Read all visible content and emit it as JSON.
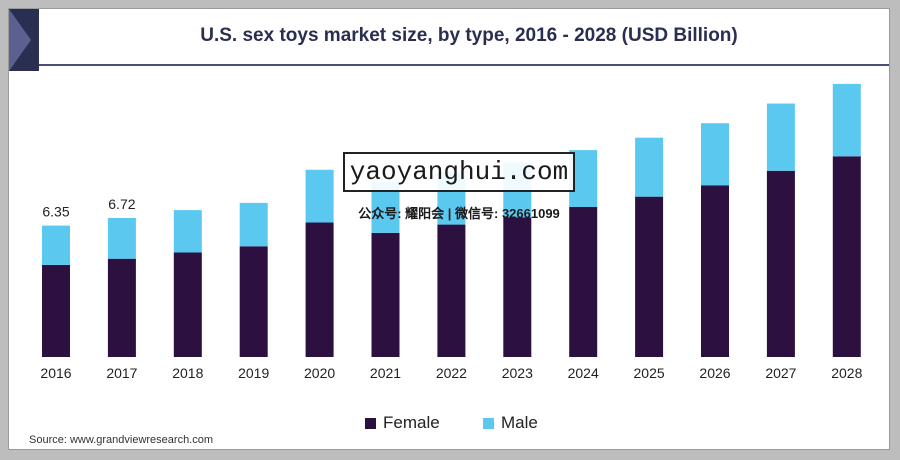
{
  "title": "U.S. sex toys market size, by type, 2016 - 2028 (USD Billion)",
  "source": "Source: www.grandviewresearch.com",
  "watermark": {
    "main": "yaoyanghui.com",
    "sub": "公众号: 耀阳会 | 微信号: 32661099"
  },
  "colors": {
    "female": "#2b1040",
    "male": "#5bc8f0",
    "frame": "#2a2f52"
  },
  "chart_data": {
    "type": "bar",
    "stacked": true,
    "title": "U.S. sex toys market size, by type, 2016 - 2028 (USD Billion)",
    "categories": [
      "2016",
      "2017",
      "2018",
      "2019",
      "2020",
      "2021",
      "2022",
      "2023",
      "2024",
      "2025",
      "2026",
      "2027",
      "2028"
    ],
    "series": [
      {
        "name": "Female",
        "values": [
          4.45,
          4.75,
          5.05,
          5.35,
          6.5,
          6.0,
          6.4,
          6.75,
          7.25,
          7.75,
          8.3,
          9.0,
          9.7
        ]
      },
      {
        "name": "Male",
        "values": [
          1.9,
          1.97,
          2.05,
          2.1,
          2.55,
          2.45,
          2.55,
          2.65,
          2.75,
          2.85,
          3.0,
          3.25,
          3.5
        ]
      }
    ],
    "labels": [
      {
        "category": "2016",
        "text": "6.35"
      },
      {
        "category": "2017",
        "text": "6.72"
      }
    ],
    "ylim": [
      0,
      14.5
    ],
    "grid": false,
    "legend": "bottom-center"
  }
}
